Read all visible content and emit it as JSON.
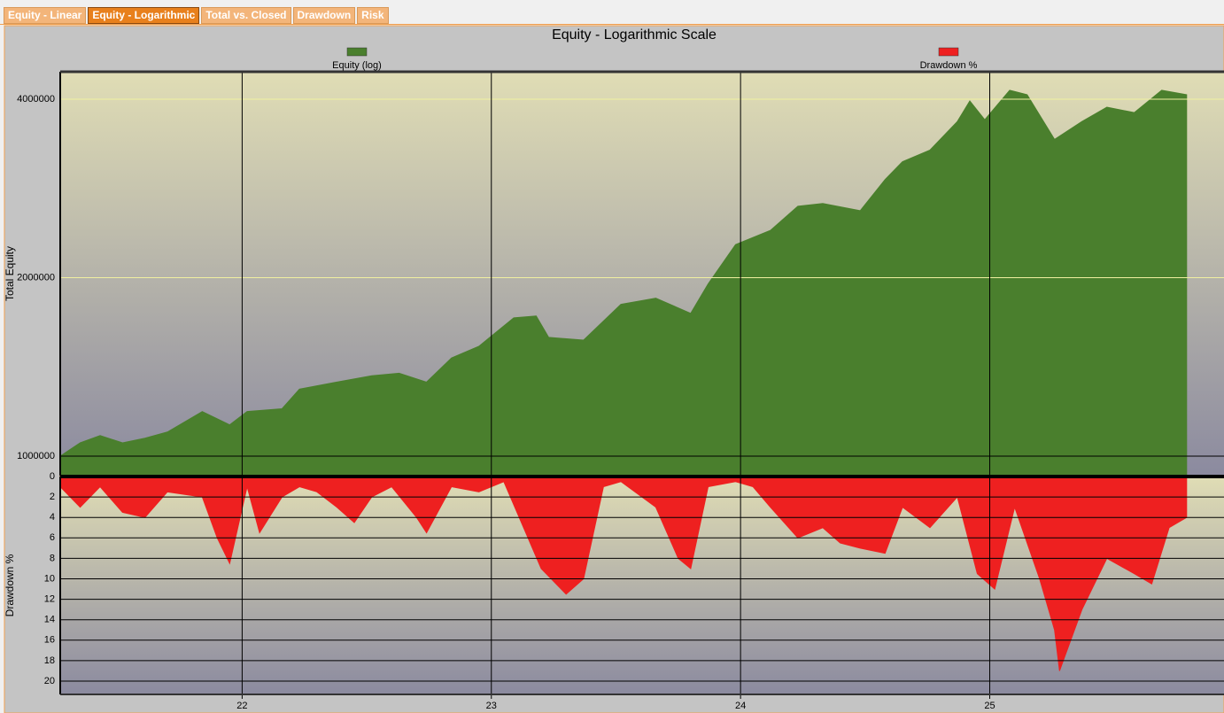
{
  "tabs": [
    "Equity - Linear",
    "Equity - Logarithmic",
    "Total vs. Closed",
    "Drawdown",
    "Risk"
  ],
  "active_tab": 1,
  "chart_data": [
    {
      "type": "area",
      "title": "Equity - Logarithmic Scale",
      "y_label": "Total Equity",
      "log_scale": true,
      "grid": true,
      "x": [
        21.27,
        21.35,
        21.43,
        21.52,
        21.61,
        21.7,
        21.84,
        21.95,
        22.02,
        22.16,
        22.23,
        22.38,
        22.52,
        22.63,
        22.74,
        22.84,
        22.95,
        23.09,
        23.18,
        23.23,
        23.37,
        23.52,
        23.66,
        23.8,
        23.87,
        23.98,
        24.12,
        24.23,
        24.33,
        24.48,
        24.58,
        24.65,
        24.76,
        24.87,
        24.92,
        24.98,
        25.08,
        25.15,
        25.26,
        25.37,
        25.47,
        25.58,
        25.69,
        25.79
      ],
      "series": [
        {
          "name": "Equity (log)",
          "color": "#4a7f2d",
          "values": [
            1000000,
            1053000,
            1083000,
            1053000,
            1072000,
            1098000,
            1189000,
            1129000,
            1189000,
            1202000,
            1297000,
            1333000,
            1366000,
            1380000,
            1333000,
            1464000,
            1532000,
            1711000,
            1723000,
            1586000,
            1569000,
            1803000,
            1847000,
            1741000,
            1952000,
            2274000,
            2403000,
            2639000,
            2667000,
            2594000,
            2928000,
            3138000,
            3283000,
            3668000,
            3972000,
            3693000,
            4141000,
            4070000,
            3422000,
            3668000,
            3877000,
            3797000,
            4141000,
            4070000
          ]
        }
      ],
      "xlim": [
        21.27,
        25.94
      ],
      "xticks": [
        22,
        23,
        24,
        25
      ],
      "ylim": [
        927000,
        4450000
      ],
      "yticks": [
        1000000,
        2000000,
        4000000
      ]
    },
    {
      "type": "area",
      "y_label": "Drawdown %",
      "inverted": true,
      "grid": true,
      "x": [
        21.27,
        21.35,
        21.43,
        21.52,
        21.61,
        21.7,
        21.84,
        21.9,
        21.95,
        22.02,
        22.07,
        22.16,
        22.23,
        22.3,
        22.38,
        22.45,
        22.52,
        22.6,
        22.7,
        22.74,
        22.84,
        22.95,
        23.05,
        23.2,
        23.3,
        23.37,
        23.45,
        23.52,
        23.66,
        23.75,
        23.8,
        23.87,
        23.98,
        24.05,
        24.12,
        24.23,
        24.33,
        24.4,
        24.48,
        24.58,
        24.65,
        24.76,
        24.87,
        24.95,
        25.02,
        25.1,
        25.2,
        25.26,
        25.28,
        25.37,
        25.47,
        25.58,
        25.65,
        25.72,
        25.79
      ],
      "series": [
        {
          "name": "Drawdown %",
          "color": "#ee2020",
          "values": [
            1,
            3,
            1,
            3.5,
            4,
            1.5,
            2,
            6,
            8.5,
            1,
            5.5,
            2,
            1,
            1.5,
            3,
            4.5,
            2,
            1,
            4,
            5.5,
            1,
            1.5,
            0.5,
            9,
            11.5,
            10,
            1,
            0.5,
            3,
            8,
            9,
            1,
            0.5,
            1,
            3,
            6,
            5,
            6.5,
            7,
            7.5,
            3,
            5,
            2,
            9.5,
            11,
            3,
            10,
            15,
            19,
            13,
            8,
            9.5,
            10.5,
            5,
            4
          ]
        }
      ],
      "xlim": [
        21.27,
        25.94
      ],
      "xticks": [
        22,
        23,
        24,
        25
      ],
      "ylim": [
        0,
        21.3
      ],
      "yticks": [
        0,
        2,
        4,
        6,
        8,
        10,
        12,
        14,
        16,
        18,
        20
      ]
    }
  ]
}
